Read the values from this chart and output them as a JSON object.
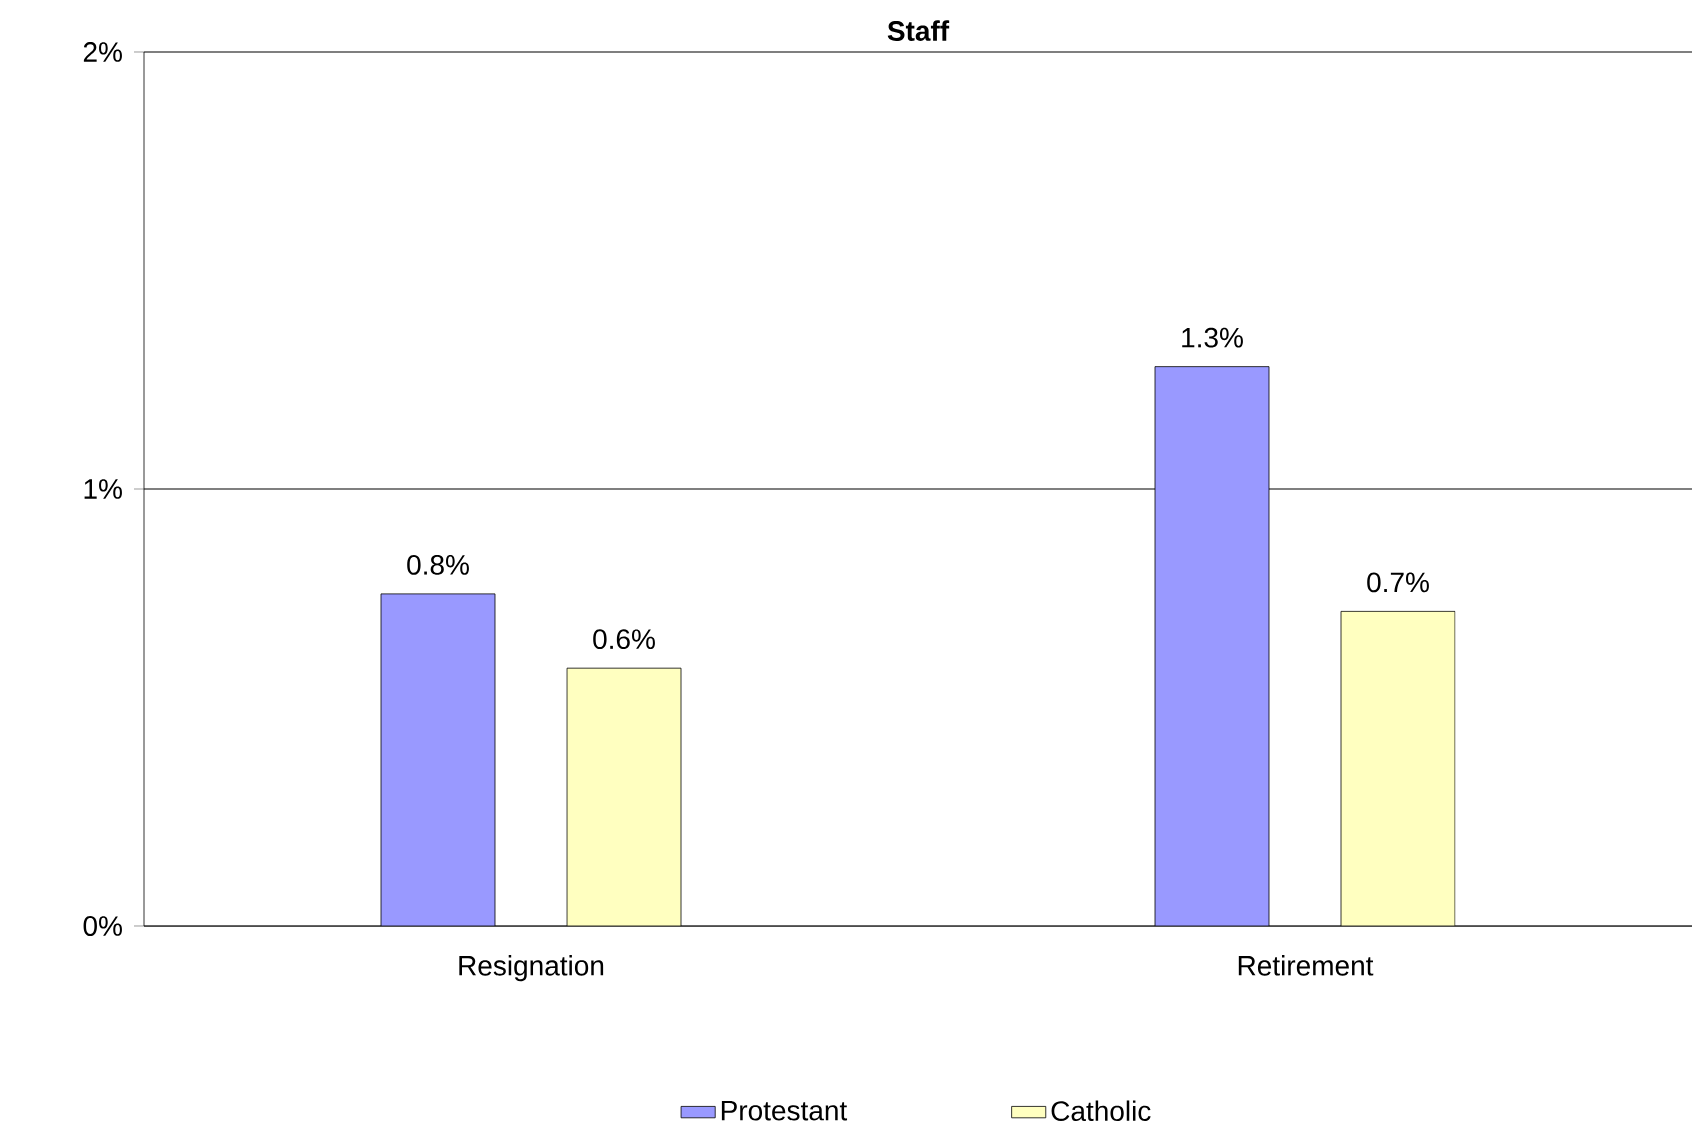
{
  "chart_data": {
    "type": "bar",
    "title": "Staff",
    "categories": [
      "Resignation",
      "Retirement"
    ],
    "series": [
      {
        "name": "Protestant",
        "color": "#9999ff",
        "values": [
          0.76,
          1.28
        ],
        "value_labels": [
          "0.8%",
          "1.3%"
        ]
      },
      {
        "name": "Catholic",
        "color": "#ffffc0",
        "values": [
          0.59,
          0.72
        ],
        "value_labels": [
          "0.6%",
          "0.7%"
        ]
      }
    ],
    "ylim": [
      0,
      2
    ],
    "yticks": [
      {
        "value": 0,
        "label": "0%"
      },
      {
        "value": 1,
        "label": "1%"
      },
      {
        "value": 2,
        "label": "2%"
      }
    ],
    "grid": "y",
    "legend": "bottom"
  }
}
